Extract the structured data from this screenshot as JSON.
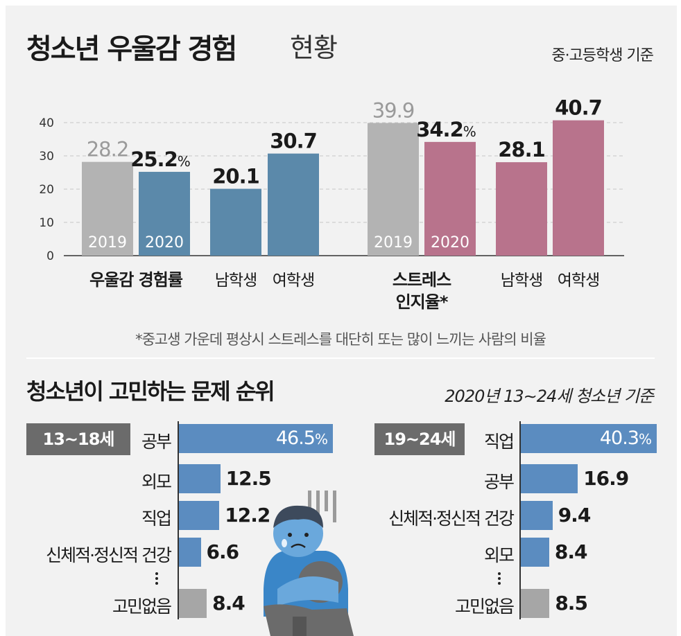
{
  "header": {
    "title_bold": "청소년 우울감 경험",
    "title_light": "현황",
    "basis": "중·고등학생 기준"
  },
  "top_note": "*중고생 가운데 평상시 스트레스를 대단히 또는 많이 느끼는 사람의 비율",
  "bottom": {
    "title": "청소년이 고민하는 문제 순위",
    "basis": "2020년 13∼24세  청소년 기준"
  },
  "colors": {
    "gray_bar": "#b3b3b3",
    "blue_bar": "#5b89aa",
    "pink_bar": "#b8738c",
    "rank_bar": "#5b8cc0",
    "rank_none": "#a6a6a6",
    "age_box": "#6b6b6b"
  },
  "illustration": {
    "icon": "sad-teen-hugging-knees-icon"
  },
  "chart_data": [
    {
      "type": "bar",
      "title": "",
      "ylim": [
        0,
        40
      ],
      "yticks": [
        0,
        10,
        20,
        30,
        40
      ],
      "grid": true,
      "groups": [
        {
          "name": "우울감 경험률",
          "bars": [
            {
              "year": "2019",
              "value": 28.2,
              "label": "28.2",
              "color": "#b3b3b3"
            },
            {
              "year": "2020",
              "value": 25.2,
              "label": "25.2",
              "suffix": "%",
              "color": "#5b89aa"
            }
          ]
        },
        {
          "name": "",
          "bars": [
            {
              "category": "남학생",
              "value": 20.1,
              "label": "20.1",
              "color": "#5b89aa"
            },
            {
              "category": "여학생",
              "value": 30.7,
              "label": "30.7",
              "color": "#5b89aa"
            }
          ]
        },
        {
          "name": "스트레스 인지율*",
          "name_lines": [
            "스트레스",
            "인지율*"
          ],
          "bars": [
            {
              "year": "2019",
              "value": 39.9,
              "label": "39.9",
              "color": "#b3b3b3"
            },
            {
              "year": "2020",
              "value": 34.2,
              "label": "34.2",
              "suffix": "%",
              "color": "#b8738c"
            }
          ]
        },
        {
          "name": "",
          "bars": [
            {
              "category": "남학생",
              "value": 28.1,
              "label": "28.1",
              "color": "#b8738c"
            },
            {
              "category": "여학생",
              "value": 40.7,
              "label": "40.7",
              "color": "#b8738c"
            }
          ]
        }
      ]
    },
    {
      "type": "bar",
      "orientation": "horizontal",
      "group": "13∼18세",
      "xlim": [
        0,
        46.5
      ],
      "items": [
        {
          "category": "공부",
          "value": 46.5,
          "label": "46.5",
          "suffix": "%"
        },
        {
          "category": "외모",
          "value": 12.5,
          "label": "12.5"
        },
        {
          "category": "직업",
          "value": 12.2,
          "label": "12.2"
        },
        {
          "category": "신체적·정신적 건강",
          "value": 6.6,
          "label": "6.6"
        },
        {
          "category": "고민없음",
          "value": 8.4,
          "label": "8.4",
          "muted": true
        }
      ],
      "ellipsis_after": 3
    },
    {
      "type": "bar",
      "orientation": "horizontal",
      "group": "19∼24세",
      "xlim": [
        0,
        40.3
      ],
      "items": [
        {
          "category": "직업",
          "value": 40.3,
          "label": "40.3",
          "suffix": "%"
        },
        {
          "category": "공부",
          "value": 16.9,
          "label": "16.9"
        },
        {
          "category": "신체적·정신적 건강",
          "value": 9.4,
          "label": "9.4"
        },
        {
          "category": "외모",
          "value": 8.4,
          "label": "8.4"
        },
        {
          "category": "고민없음",
          "value": 8.5,
          "label": "8.5",
          "muted": true
        }
      ],
      "ellipsis_after": 3
    }
  ]
}
